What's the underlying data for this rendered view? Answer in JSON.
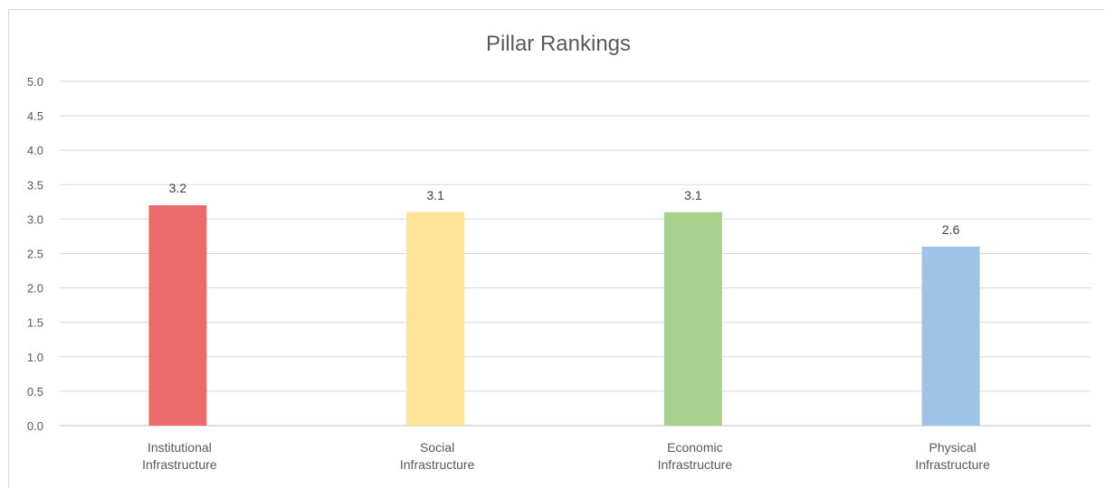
{
  "chart_data": {
    "type": "bar",
    "title": "Pillar Rankings",
    "xlabel": "",
    "ylabel": "",
    "ylim": [
      0,
      5
    ],
    "yticks": [
      "0.0",
      "0.5",
      "1.0",
      "1.5",
      "2.0",
      "2.5",
      "3.0",
      "3.5",
      "4.0",
      "4.5",
      "5.0"
    ],
    "grid": true,
    "legend": "none",
    "categories": [
      [
        "Institutional",
        "Infrastructure"
      ],
      [
        "Social",
        "Infrastructure"
      ],
      [
        "Economic",
        "Infrastructure"
      ],
      [
        "Physical",
        "Infrastructure"
      ]
    ],
    "values": [
      3.2,
      3.1,
      3.1,
      2.6
    ],
    "data_labels": [
      "3.2",
      "3.1",
      "3.1",
      "2.6"
    ],
    "colors": [
      "#ea6b6b",
      "#fde497",
      "#a9d18e",
      "#9dc3e6"
    ]
  }
}
